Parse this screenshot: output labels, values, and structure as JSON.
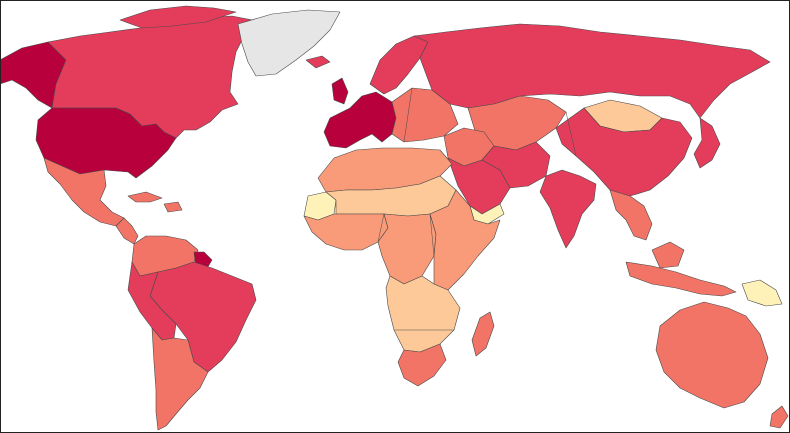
{
  "map": {
    "type": "choropleth-world",
    "legend": "",
    "classes": {
      "no_data": "#e6e6e6",
      "lowest": "#fff2b8",
      "low": "#fdc999",
      "medium_low": "#f99a79",
      "medium": "#f27466",
      "high": "#e43d5c",
      "highest": "#b8003c"
    },
    "regions": [
      {
        "id": "alaska",
        "class": "highest"
      },
      {
        "id": "canada",
        "class": "high"
      },
      {
        "id": "greenland",
        "class": "no_data"
      },
      {
        "id": "usa",
        "class": "highest"
      },
      {
        "id": "mexico",
        "class": "medium"
      },
      {
        "id": "central-america",
        "class": "medium"
      },
      {
        "id": "caribbean",
        "class": "medium"
      },
      {
        "id": "colombia-venezuela",
        "class": "medium"
      },
      {
        "id": "guianas",
        "class": "highest"
      },
      {
        "id": "brazil",
        "class": "high"
      },
      {
        "id": "peru-bolivia",
        "class": "high"
      },
      {
        "id": "argentina-chile",
        "class": "medium"
      },
      {
        "id": "iceland",
        "class": "high"
      },
      {
        "id": "western-europe",
        "class": "highest"
      },
      {
        "id": "scandinavia",
        "class": "high"
      },
      {
        "id": "eastern-europe",
        "class": "medium"
      },
      {
        "id": "russia",
        "class": "high"
      },
      {
        "id": "central-asia",
        "class": "medium"
      },
      {
        "id": "mongolia",
        "class": "low"
      },
      {
        "id": "china",
        "class": "high"
      },
      {
        "id": "japan-korea",
        "class": "high"
      },
      {
        "id": "middle-east",
        "class": "medium"
      },
      {
        "id": "arabia",
        "class": "high"
      },
      {
        "id": "yemen",
        "class": "lowest"
      },
      {
        "id": "iran-afghan",
        "class": "high"
      },
      {
        "id": "india",
        "class": "high"
      },
      {
        "id": "southeast-asia",
        "class": "medium"
      },
      {
        "id": "north-africa",
        "class": "medium-low"
      },
      {
        "id": "sahel",
        "class": "low"
      },
      {
        "id": "western-sahara",
        "class": "lowest"
      },
      {
        "id": "west-africa",
        "class": "medium-low"
      },
      {
        "id": "central-africa",
        "class": "medium-low"
      },
      {
        "id": "east-africa",
        "class": "medium-low"
      },
      {
        "id": "southern-africa",
        "class": "low"
      },
      {
        "id": "south-africa",
        "class": "medium"
      },
      {
        "id": "madagascar",
        "class": "medium"
      },
      {
        "id": "indonesia",
        "class": "medium"
      },
      {
        "id": "papua",
        "class": "lowest"
      },
      {
        "id": "australia",
        "class": "medium"
      },
      {
        "id": "new-zealand",
        "class": "medium"
      }
    ]
  }
}
